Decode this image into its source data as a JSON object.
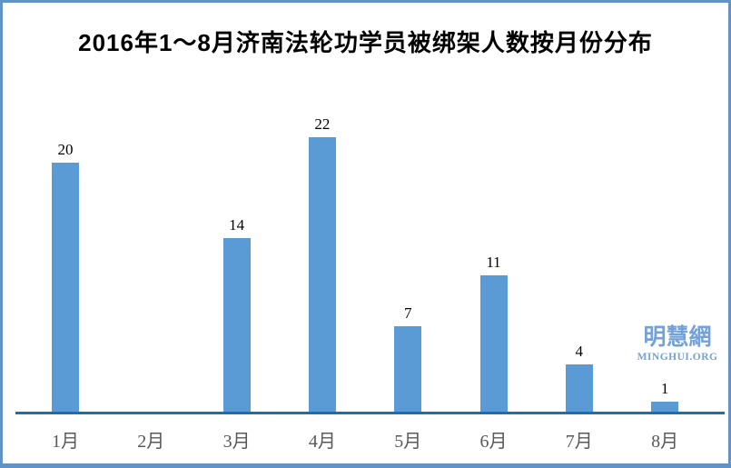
{
  "chart_data": {
    "type": "bar",
    "title": "2016年1～8月济南法轮功学员被绑架人数按月份分布",
    "categories": [
      "1月",
      "2月",
      "3月",
      "4月",
      "5月",
      "6月",
      "7月",
      "8月"
    ],
    "values": [
      20,
      0,
      14,
      22,
      7,
      11,
      4,
      1
    ],
    "xlabel": "",
    "ylabel": "",
    "ylim": [
      0,
      22
    ],
    "grid": false,
    "legend": false,
    "show_value_labels": true,
    "bar_color": "#5B9BD5",
    "axis_color": "#1172BA",
    "value_label_color": "#000000",
    "tick_label_color": "#595959"
  },
  "watermark": {
    "cjk": "明慧網",
    "latin": "MINGHUI.ORG",
    "color": "#73A1D8"
  },
  "frame": {
    "border_color": "#6093C8",
    "background": "#ffffff"
  }
}
